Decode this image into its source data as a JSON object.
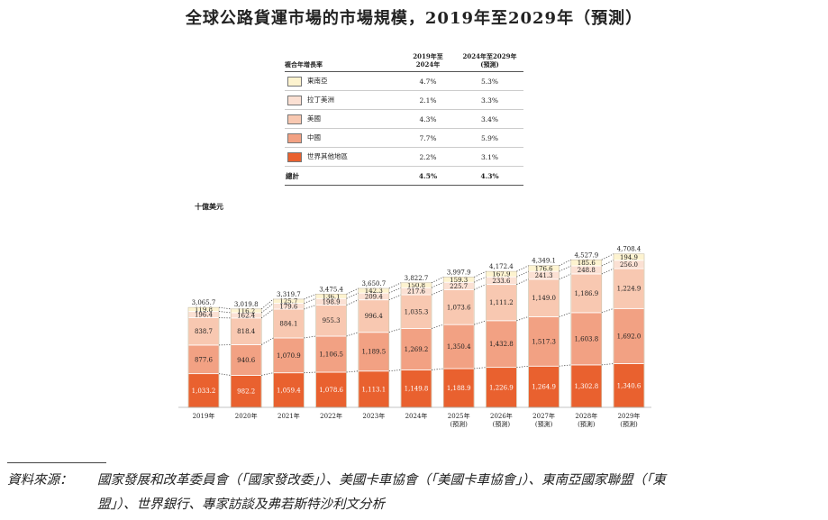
{
  "title": "全球公路貨運市場的市場規模，2019年至2029年（預測）",
  "unit": "十億美元",
  "cagr_table": {
    "header_label": "複合年增長率",
    "col1": [
      "2019年至",
      "2024年"
    ],
    "col2": [
      "2024年至2029年",
      "(預測)"
    ],
    "rows": [
      {
        "name": "東南亞",
        "v1": "4.7%",
        "v2": "5.3%",
        "color": "#fdf3cf"
      },
      {
        "name": "拉丁美洲",
        "v1": "2.1%",
        "v2": "3.3%",
        "color": "#fbe0d3"
      },
      {
        "name": "美國",
        "v1": "4.3%",
        "v2": "3.4%",
        "color": "#f8c8b1"
      },
      {
        "name": "中國",
        "v1": "7.7%",
        "v2": "5.9%",
        "color": "#f2a183"
      },
      {
        "name": "世界其他地區",
        "v1": "2.2%",
        "v2": "3.1%",
        "color": "#e9612f"
      }
    ],
    "total": {
      "name": "總計",
      "v1": "4.5%",
      "v2": "4.3%"
    }
  },
  "chart_data": {
    "type": "bar",
    "stacked": true,
    "unit": "十億美元",
    "categories": [
      "2019年",
      "2020年",
      "2021年",
      "2022年",
      "2023年",
      "2024年",
      "2025年",
      "2026年",
      "2027年",
      "2028年",
      "2029年"
    ],
    "category_sublabels": [
      "",
      "",
      "",
      "",
      "",
      "",
      "(預測)",
      "(預測)",
      "(預測)",
      "(預測)",
      "(預測)"
    ],
    "series": [
      {
        "name": "世界其他地區",
        "color": "#e9612f",
        "values": [
          1033.2,
          982.2,
          1059.4,
          1078.6,
          1113.1,
          1149.8,
          1188.9,
          1226.9,
          1264.9,
          1302.8,
          1340.6
        ],
        "labels": [
          "1,033.2",
          "982.2",
          "1,059.4",
          "1,078.6",
          "1,113.1",
          "1,149.8",
          "1,188.9",
          "1,226.9",
          "1,264.9",
          "1,302.8",
          "1,340.6"
        ]
      },
      {
        "name": "中國",
        "color": "#f2a183",
        "values": [
          877.6,
          940.6,
          1070.9,
          1106.5,
          1189.5,
          1269.2,
          1350.4,
          1432.8,
          1517.3,
          1603.8,
          1692.0
        ],
        "labels": [
          "877.6",
          "940.6",
          "1,070.9",
          "1,106.5",
          "1,189.5",
          "1,269.2",
          "1,350.4",
          "1,432.8",
          "1,517.3",
          "1,603.8",
          "1,692.0"
        ]
      },
      {
        "name": "美國",
        "color": "#f8c8b1",
        "values": [
          838.7,
          818.4,
          884.1,
          955.3,
          996.4,
          1035.3,
          1073.6,
          1111.2,
          1149.0,
          1186.9,
          1224.9
        ],
        "labels": [
          "838.7",
          "818.4",
          "884.1",
          "955.3",
          "996.4",
          "1,035.3",
          "1,073.6",
          "1,111.2",
          "1,149.0",
          "1,186.9",
          "1,224.9"
        ]
      },
      {
        "name": "拉丁美洲",
        "color": "#fbe0d3",
        "values": [
          196.4,
          162.4,
          179.6,
          198.9,
          209.4,
          217.6,
          225.7,
          233.6,
          241.3,
          248.8,
          256.0
        ],
        "labels": [
          "196.4",
          "162.4",
          "179.6",
          "198.9",
          "209.4",
          "217.6",
          "225.7",
          "233.6",
          "241.3",
          "248.8",
          "256.0"
        ]
      },
      {
        "name": "東南亞",
        "color": "#fdf3cf",
        "values": [
          119.8,
          116.2,
          125.7,
          136.1,
          142.3,
          150.8,
          159.3,
          167.9,
          176.6,
          185.6,
          194.9
        ],
        "labels": [
          "119.8",
          "116.2",
          "125.7",
          "136.1",
          "142.3",
          "150.8",
          "159.3",
          "167.9",
          "176.6",
          "185.6",
          "194.9"
        ]
      }
    ],
    "totals": [
      3065.7,
      3019.8,
      3319.7,
      3475.4,
      3650.7,
      3822.7,
      3997.9,
      4172.4,
      4349.1,
      4527.9,
      4708.4
    ],
    "total_labels": [
      "3,065.7",
      "3,019.8",
      "3,319.7",
      "3,475.4",
      "3,650.7",
      "3,822.7",
      "3,997.9",
      "4,172.4",
      "4,349.1",
      "4,527.9",
      "4,708.4"
    ]
  },
  "source": {
    "label": "資料來源：",
    "line1": "國家發展和改革委員會（「國家發改委」）、美國卡車協會（「美國卡車協會」）、東南亞國家聯盟（「東",
    "line2": "盟」）、世界銀行、專家訪談及弗若斯特沙利文分析"
  }
}
